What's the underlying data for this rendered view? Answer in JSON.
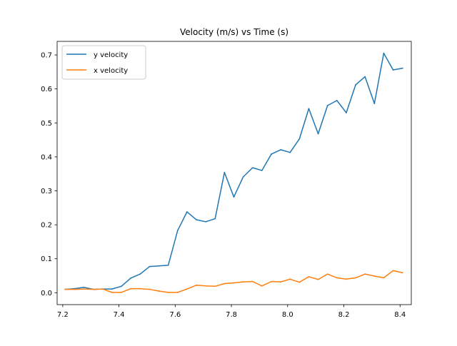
{
  "chart_data": {
    "type": "line",
    "title": "Velocity (m/s) vs Time (s)",
    "xlabel": "",
    "ylabel": "",
    "xlim": [
      7.18,
      8.44
    ],
    "ylim": [
      -0.035,
      0.74
    ],
    "xticks": [
      7.2,
      7.4,
      7.6,
      7.8,
      8.0,
      8.2,
      8.4
    ],
    "xtick_labels": [
      "7.2",
      "7.4",
      "7.6",
      "7.8",
      "8.0",
      "8.2",
      "8.4"
    ],
    "yticks": [
      0.0,
      0.1,
      0.2,
      0.3,
      0.4,
      0.5,
      0.6,
      0.7
    ],
    "ytick_labels": [
      "0.0",
      "0.1",
      "0.2",
      "0.3",
      "0.4",
      "0.5",
      "0.6",
      "0.7"
    ],
    "grid": false,
    "legend_position": "upper-left",
    "x": [
      7.2087,
      7.242,
      7.2753,
      7.3087,
      7.342,
      7.3753,
      7.4087,
      7.442,
      7.4753,
      7.5087,
      7.542,
      7.5753,
      7.6087,
      7.642,
      7.6753,
      7.7087,
      7.742,
      7.7753,
      7.8087,
      7.842,
      7.8753,
      7.9087,
      7.942,
      7.9753,
      8.0087,
      8.042,
      8.0753,
      8.1087,
      8.142,
      8.1753,
      8.2087,
      8.242,
      8.2753,
      8.3087,
      8.342,
      8.3753,
      8.4087
    ],
    "series": [
      {
        "name": "y velocity",
        "color": "#1f77b4",
        "values": [
          0.01,
          0.012,
          0.016,
          0.01,
          0.011,
          0.011,
          0.019,
          0.043,
          0.055,
          0.077,
          0.079,
          0.081,
          0.183,
          0.238,
          0.215,
          0.209,
          0.218,
          0.354,
          0.282,
          0.341,
          0.368,
          0.36,
          0.408,
          0.421,
          0.413,
          0.453,
          0.542,
          0.468,
          0.551,
          0.566,
          0.53,
          0.612,
          0.636,
          0.557,
          0.705,
          0.656,
          0.661
        ]
      },
      {
        "name": "x velocity",
        "color": "#ff7f0e",
        "values": [
          0.01,
          0.01,
          0.011,
          0.01,
          0.011,
          0.001,
          0.001,
          0.012,
          0.012,
          0.01,
          0.005,
          0.001,
          0.001,
          0.011,
          0.022,
          0.02,
          0.019,
          0.027,
          0.029,
          0.032,
          0.033,
          0.02,
          0.033,
          0.032,
          0.04,
          0.031,
          0.047,
          0.039,
          0.055,
          0.044,
          0.04,
          0.044,
          0.055,
          0.049,
          0.044,
          0.065,
          0.059
        ]
      }
    ]
  }
}
